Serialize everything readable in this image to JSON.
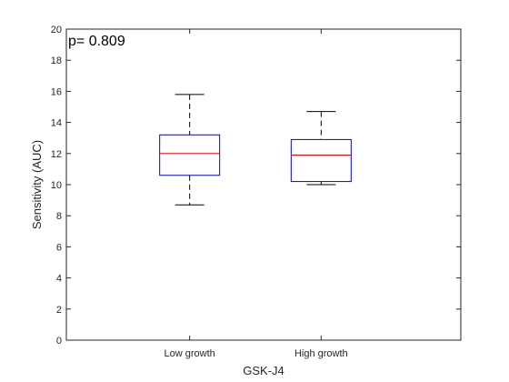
{
  "chart_data": {
    "type": "box",
    "annotation": "p= 0.809",
    "xlabel": "GSK-J4",
    "ylabel": "Sensitivity (AUC)",
    "ylim": [
      0,
      20
    ],
    "yticks": [
      0,
      2,
      4,
      6,
      8,
      10,
      12,
      14,
      16,
      18,
      20
    ],
    "grid": false,
    "categories": [
      "Low growth",
      "High growth"
    ],
    "boxes": [
      {
        "category": "Low growth",
        "whisker_low": 8.7,
        "q1": 10.6,
        "median": 12.0,
        "q3": 13.2,
        "whisker_high": 15.8
      },
      {
        "category": "High growth",
        "whisker_low": 10.0,
        "q1": 10.2,
        "median": 11.9,
        "q3": 12.9,
        "whisker_high": 14.7
      }
    ],
    "colors": {
      "box": "#0000ff",
      "median": "#ff0000",
      "whisker": "#000000",
      "axis": "#262626"
    }
  }
}
